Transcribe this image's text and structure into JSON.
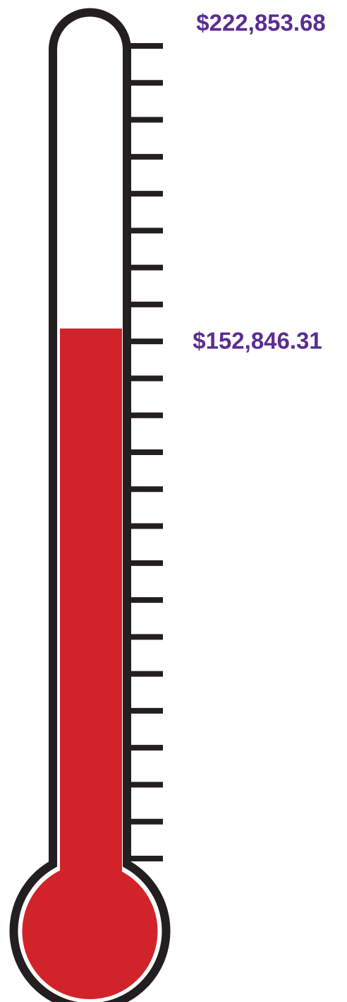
{
  "chart_data": {
    "type": "thermometer",
    "goal": 222853.68,
    "goal_label": "$222,853.68",
    "raised": 152846.31,
    "raised_label": "$152,846.31",
    "color": "#d2232a",
    "label_color": "#5b2d91"
  }
}
